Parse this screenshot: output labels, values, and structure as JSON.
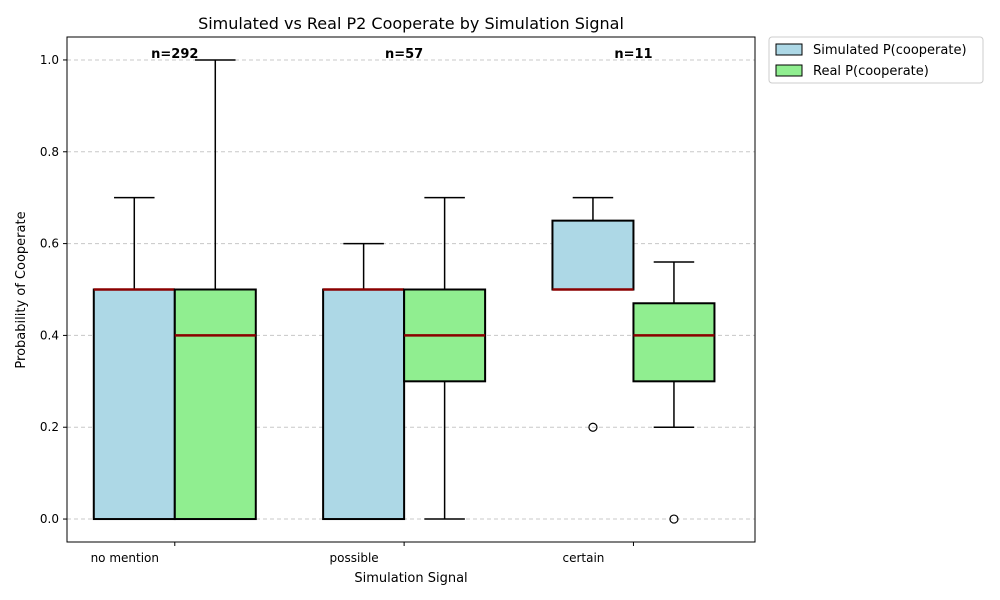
{
  "chart_data": {
    "type": "boxplot",
    "title": "Simulated vs Real P2 Cooperate by Simulation Signal",
    "xlabel": "Simulation Signal",
    "ylabel": "Probability of Cooperate",
    "ylim": [
      -0.05,
      1.05
    ],
    "yticks": [
      0.0,
      0.2,
      0.4,
      0.6,
      0.8,
      1.0
    ],
    "ytick_labels": [
      "0.0",
      "0.2",
      "0.4",
      "0.6",
      "0.8",
      "1.0"
    ],
    "grid": "y-dashed",
    "legend_placement": "outside-top-right",
    "categories": [
      "no mention",
      "possible",
      "certain"
    ],
    "counts": [
      "n=292",
      "n=57",
      "n=11"
    ],
    "series": [
      {
        "name": "Simulated P(cooperate)",
        "color": "#add8e6",
        "boxes": [
          {
            "whisker_low": 0.0,
            "q1": 0.0,
            "median": 0.5,
            "q3": 0.5,
            "whisker_high": 0.7,
            "outliers": []
          },
          {
            "whisker_low": 0.0,
            "q1": 0.0,
            "median": 0.5,
            "q3": 0.5,
            "whisker_high": 0.6,
            "outliers": []
          },
          {
            "whisker_low": 0.5,
            "q1": 0.5,
            "median": 0.5,
            "q3": 0.65,
            "whisker_high": 0.7,
            "outliers": [
              0.2
            ]
          }
        ]
      },
      {
        "name": "Real P(cooperate)",
        "color": "#90ee90",
        "boxes": [
          {
            "whisker_low": 0.0,
            "q1": 0.0,
            "median": 0.4,
            "q3": 0.5,
            "whisker_high": 1.0,
            "outliers": []
          },
          {
            "whisker_low": 0.0,
            "q1": 0.3,
            "median": 0.4,
            "q3": 0.5,
            "whisker_high": 0.7,
            "outliers": []
          },
          {
            "whisker_low": 0.2,
            "q1": 0.3,
            "median": 0.4,
            "q3": 0.47,
            "whisker_high": 0.56,
            "outliers": [
              0.0
            ]
          }
        ]
      }
    ],
    "median_color": "#8b0000",
    "grid_color": "#c8c8c8"
  }
}
